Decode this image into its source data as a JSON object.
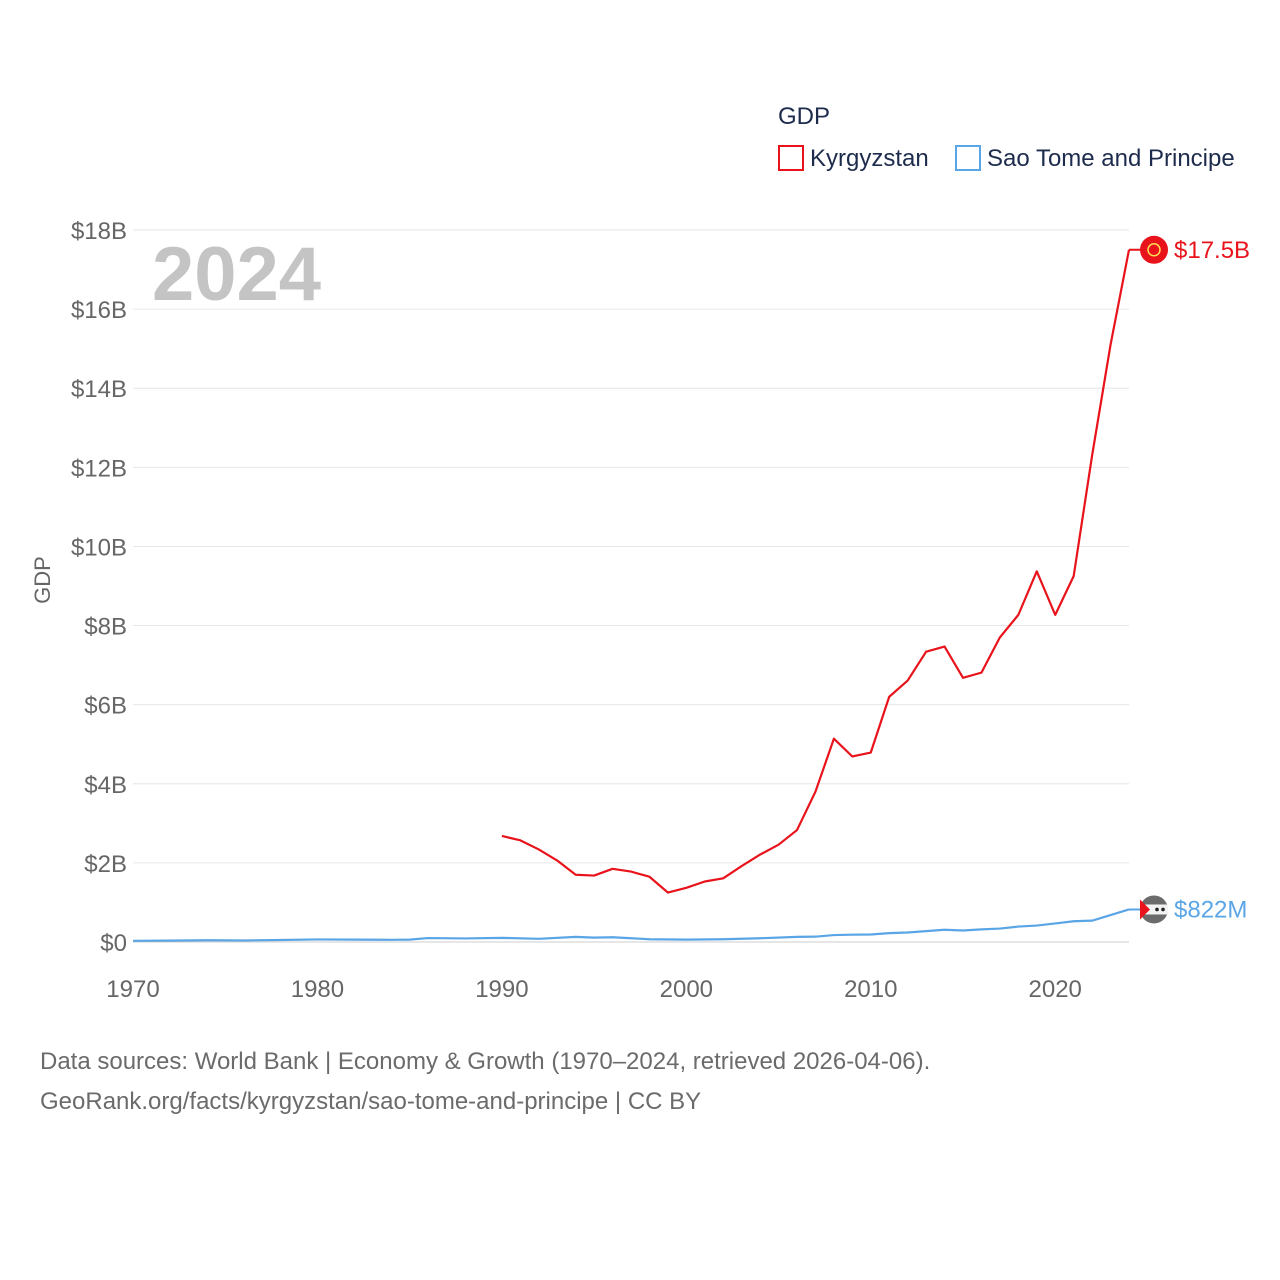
{
  "chart_data": {
    "type": "line",
    "title": "",
    "legend_title": "GDP",
    "legend_position": "top-right",
    "year_label": "2024",
    "ylabel": "GDP",
    "xlabel": "",
    "xlim": [
      1970,
      2024
    ],
    "ylim": [
      0,
      18000000000
    ],
    "x_ticks": [
      1970,
      1980,
      1990,
      2000,
      2010,
      2020
    ],
    "x_tick_labels": [
      "1970",
      "1980",
      "1990",
      "2000",
      "2010",
      "2020"
    ],
    "y_ticks": [
      0,
      2000000000,
      4000000000,
      6000000000,
      8000000000,
      10000000000,
      12000000000,
      14000000000,
      16000000000,
      18000000000
    ],
    "y_tick_labels": [
      "$0",
      "$2B",
      "$4B",
      "$6B",
      "$8B",
      "$10B",
      "$12B",
      "$14B",
      "$16B",
      "$18B"
    ],
    "grid": true,
    "series": [
      {
        "name": "Kyrgyzstan",
        "color": "#e8131b",
        "end_label": "$17.5B",
        "marker_icon": "kyrgyzstan-flag-icon",
        "x": [
          1990,
          1991,
          1992,
          1993,
          1994,
          1995,
          1996,
          1997,
          1998,
          1999,
          2000,
          2001,
          2002,
          2003,
          2004,
          2005,
          2006,
          2007,
          2008,
          2009,
          2010,
          2011,
          2012,
          2013,
          2014,
          2015,
          2016,
          2017,
          2018,
          2019,
          2020,
          2021,
          2022,
          2023,
          2024
        ],
        "values": [
          2680000000,
          2570000000,
          2340000000,
          2060000000,
          1700000000,
          1680000000,
          1850000000,
          1780000000,
          1650000000,
          1250000000,
          1370000000,
          1530000000,
          1610000000,
          1920000000,
          2210000000,
          2460000000,
          2830000000,
          3800000000,
          5140000000,
          4690000000,
          4790000000,
          6200000000,
          6610000000,
          7340000000,
          7470000000,
          6680000000,
          6810000000,
          7700000000,
          8270000000,
          9370000000,
          8270000000,
          9250000000,
          12300000000,
          15100000000,
          17500000000
        ]
      },
      {
        "name": "Sao Tome and Principe",
        "color": "#5aa5e5",
        "end_label": "$822M",
        "marker_icon": "sao-tome-and-principe-flag-icon",
        "x": [
          1970,
          1972,
          1974,
          1976,
          1978,
          1980,
          1982,
          1984,
          1985,
          1986,
          1988,
          1990,
          1992,
          1994,
          1995,
          1996,
          1998,
          2000,
          2002,
          2004,
          2006,
          2007,
          2008,
          2009,
          2010,
          2011,
          2012,
          2013,
          2014,
          2015,
          2016,
          2017,
          2018,
          2019,
          2020,
          2021,
          2022,
          2023,
          2024
        ],
        "values": [
          30000000,
          35000000,
          45000000,
          40000000,
          50000000,
          65000000,
          60000000,
          55000000,
          60000000,
          100000000,
          90000000,
          105000000,
          80000000,
          130000000,
          110000000,
          120000000,
          70000000,
          60000000,
          70000000,
          95000000,
          130000000,
          135000000,
          175000000,
          185000000,
          190000000,
          225000000,
          240000000,
          275000000,
          310000000,
          290000000,
          320000000,
          340000000,
          390000000,
          415000000,
          470000000,
          525000000,
          540000000,
          680000000,
          822000000
        ]
      }
    ]
  },
  "footer": {
    "line1": "Data sources: World Bank | Economy & Growth (1970–2024, retrieved 2026-04-06).",
    "line2": "GeoRank.org/facts/kyrgyzstan/sao-tome-and-principe | CC BY"
  }
}
